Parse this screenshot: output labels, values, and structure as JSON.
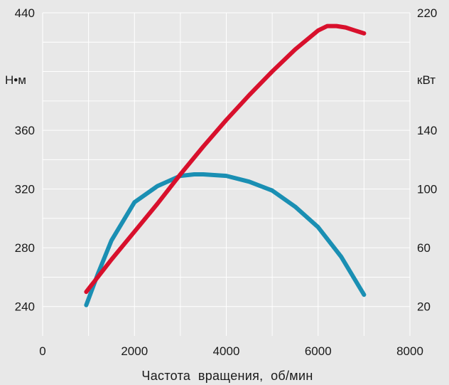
{
  "chart_data": {
    "type": "line",
    "title": "",
    "xlabel": "Частота  вращения,  об/мин",
    "y_left_unit": "Н•м",
    "y_right_unit": "кВт",
    "x_ticks": [
      "0",
      "2000",
      "4000",
      "6000",
      "8000"
    ],
    "y_left_ticks": [
      "440",
      "360",
      "320",
      "280",
      "240"
    ],
    "y_right_ticks": [
      "220",
      "140",
      "100",
      "60",
      "20"
    ],
    "xlim": [
      0,
      8000
    ],
    "y_left_lim": [
      220,
      440
    ],
    "y_right_lim": [
      0,
      220
    ],
    "grid": true,
    "colors": {
      "torque": "#1a8fb3",
      "power": "#d8102c",
      "grid": "#ffffff",
      "plot_bg": "#e8e8e8"
    },
    "series": [
      {
        "axis": "left",
        "color": "#1a8fb3",
        "x": [
          950,
          1200,
          1500,
          2000,
          2500,
          3000,
          3300,
          3500,
          4000,
          4500,
          5000,
          5500,
          6000,
          6500,
          7000
        ],
        "y": [
          241,
          262,
          285,
          311,
          322,
          329,
          330,
          330,
          329,
          325,
          319,
          308,
          294,
          274,
          248
        ]
      },
      {
        "axis": "right",
        "color": "#d8102c",
        "x": [
          950,
          1500,
          2000,
          2500,
          3000,
          3500,
          4000,
          4500,
          5000,
          5500,
          6000,
          6200,
          6400,
          6600,
          6800,
          7000
        ],
        "y": [
          30,
          52,
          71,
          90,
          110,
          129,
          147,
          164,
          180,
          195,
          208,
          211,
          211,
          210,
          208,
          206
        ]
      }
    ]
  }
}
